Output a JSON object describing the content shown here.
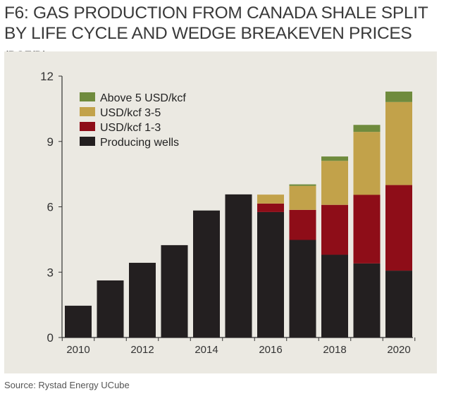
{
  "title": {
    "line1": "F6:  GAS PRODUCTION FROM CANADA SHALE  SPLIT",
    "line2": "BY LIFE CYCLE AND WEDGE BREAKEVEN PRICES",
    "unit": "(BCF/D)"
  },
  "source": "Source: Rystad Energy UCube",
  "chart_data": {
    "type": "bar",
    "stacked": true,
    "title": "F6:  GAS PRODUCTION FROM CANADA SHALE  SPLIT BY LIFE CYCLE AND WEDGE BREAKEVEN PRICES (BCF/D)",
    "xlabel": "",
    "ylabel": "",
    "ylim": [
      0,
      12
    ],
    "yticks": [
      0,
      3,
      6,
      9,
      12
    ],
    "xtick_labels": [
      "2010",
      "2012",
      "2014",
      "2016",
      "2018",
      "2020"
    ],
    "categories": [
      "2010",
      "2011",
      "2012",
      "2013",
      "2014",
      "2015",
      "2016",
      "2017",
      "2018",
      "2019",
      "2020"
    ],
    "grid": false,
    "legend_position": "top-left",
    "series": [
      {
        "name": "Producing wells",
        "color": "#231f20",
        "values": [
          1.46,
          2.62,
          3.43,
          4.24,
          5.83,
          6.57,
          5.76,
          4.48,
          3.8,
          3.4,
          3.07
        ]
      },
      {
        "name": "USD/kcf 1-3",
        "color": "#8e0d18",
        "values": [
          0,
          0,
          0,
          0,
          0,
          0,
          0.39,
          1.38,
          2.29,
          3.15,
          3.93
        ]
      },
      {
        "name": "USD/kcf 3-5",
        "color": "#c2a24a",
        "values": [
          0,
          0,
          0,
          0,
          0,
          0,
          0.41,
          1.1,
          2.02,
          2.89,
          3.81
        ]
      },
      {
        "name": "Above 5 USD/kcf",
        "color": "#6f8b3d",
        "values": [
          0,
          0,
          0,
          0,
          0,
          0,
          0,
          0.07,
          0.2,
          0.32,
          0.48
        ]
      }
    ],
    "legend_order": [
      "Above 5 USD/kcf",
      "USD/kcf 3-5",
      "USD/kcf 1-3",
      "Producing wells"
    ]
  }
}
